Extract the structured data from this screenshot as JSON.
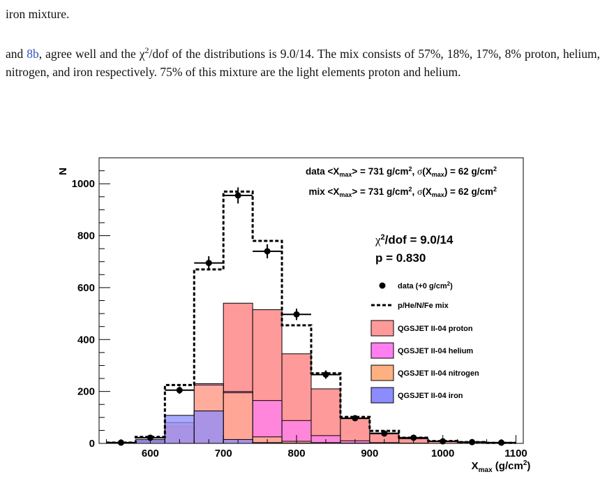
{
  "text": {
    "line1": "iron mixture.",
    "para_link": "8b",
    "para_pre": "and ",
    "para_mid": ", agree well and the χ",
    "para_sup": "2",
    "para_post": "/dof of the distributions is 9.0/14. The mix consists of 57%, 18%, 17%, 8% proton, helium, nitrogen, and iron respectively. 75% of this mixture are the light elements proton and helium."
  },
  "chart_data": {
    "type": "histogram",
    "xlabel": "X_max (g/cm²)",
    "ylabel": "N",
    "xlim": [
      530,
      1110
    ],
    "ylim": [
      0,
      1100
    ],
    "xticks": [
      600,
      700,
      800,
      900,
      1000,
      1100
    ],
    "yticks": [
      0,
      200,
      400,
      600,
      800,
      1000
    ],
    "header": {
      "data_line": "data <X_max> = 731 g/cm², σ(X_max) = 62 g/cm²",
      "mix_line": "mix <X_max> = 731 g/cm², σ(X_max) = 62 g/cm²"
    },
    "stats": {
      "chi2": "χ²/dof = 9.0/14",
      "p": "p = 0.830"
    },
    "bin_edges": [
      540,
      580,
      620,
      660,
      700,
      740,
      780,
      820,
      860,
      900,
      940,
      980,
      1020,
      1060,
      1100
    ],
    "series": [
      {
        "name": "QGSJET II-04 proton",
        "color": "#ff9a9a",
        "values": [
          0,
          5,
          60,
          120,
          540,
          515,
          345,
          210,
          95,
          40,
          18,
          8,
          4,
          2
        ]
      },
      {
        "name": "QGSJET II-04 helium",
        "color": "#ff7ff0",
        "values": [
          0,
          8,
          65,
          230,
          200,
          165,
          88,
          30,
          10,
          3,
          1,
          0,
          0,
          0
        ]
      },
      {
        "name": "QGSJET II-04 nitrogen",
        "color": "#ffb080",
        "values": [
          0,
          10,
          80,
          225,
          195,
          25,
          8,
          3,
          1,
          0,
          0,
          0,
          0,
          0
        ]
      },
      {
        "name": "QGSJET II-04 iron",
        "color": "#8c8cff",
        "values": [
          0,
          15,
          108,
          125,
          15,
          3,
          1,
          0,
          0,
          0,
          0,
          0,
          0,
          0
        ]
      }
    ],
    "mix": {
      "name": "p/He/N/Fe mix",
      "values": [
        3,
        25,
        225,
        670,
        970,
        780,
        455,
        270,
        102,
        48,
        22,
        9,
        5,
        2
      ]
    },
    "data": {
      "name": "data (+0 g/cm²)",
      "x": [
        560,
        600,
        640,
        680,
        720,
        760,
        800,
        840,
        880,
        920,
        960,
        1000,
        1040,
        1080
      ],
      "y": [
        3,
        22,
        205,
        695,
        955,
        740,
        497,
        265,
        97,
        38,
        22,
        8,
        5,
        3
      ],
      "yerr": [
        0,
        0,
        14,
        26,
        31,
        27,
        22,
        16,
        10,
        6,
        0,
        0,
        0,
        0
      ]
    }
  }
}
